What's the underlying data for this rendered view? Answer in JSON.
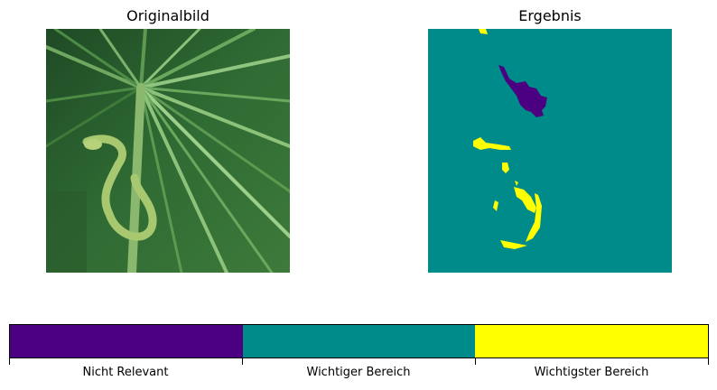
{
  "panels": {
    "left_title": "Originalbild",
    "right_title": "Ergebnis"
  },
  "legend": {
    "labels": [
      "Nicht Relevant",
      "Wichtiger Bereich",
      "Wichtigster Bereich"
    ],
    "colors": [
      "#4b0082",
      "#008b8b",
      "#ffff00"
    ]
  }
}
